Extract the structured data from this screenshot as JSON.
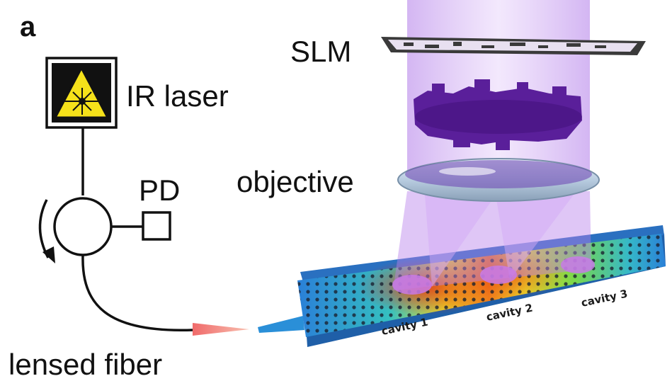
{
  "figure": {
    "panel_letter": "a",
    "labels": {
      "slm": "SLM",
      "ir_laser": "IR laser",
      "photodetector": "PD",
      "objective": "objective",
      "lensed_fiber": "lensed fiber"
    },
    "cavities": [
      "cavity 1",
      "cavity 2",
      "cavity 3"
    ],
    "colors": {
      "beam": "#c89bf0",
      "hologram": "#5a1f9a",
      "laser_sign": "#f5e11a",
      "fiber_tip": "#f08080",
      "waveguide": "#2a8fd8"
    }
  }
}
